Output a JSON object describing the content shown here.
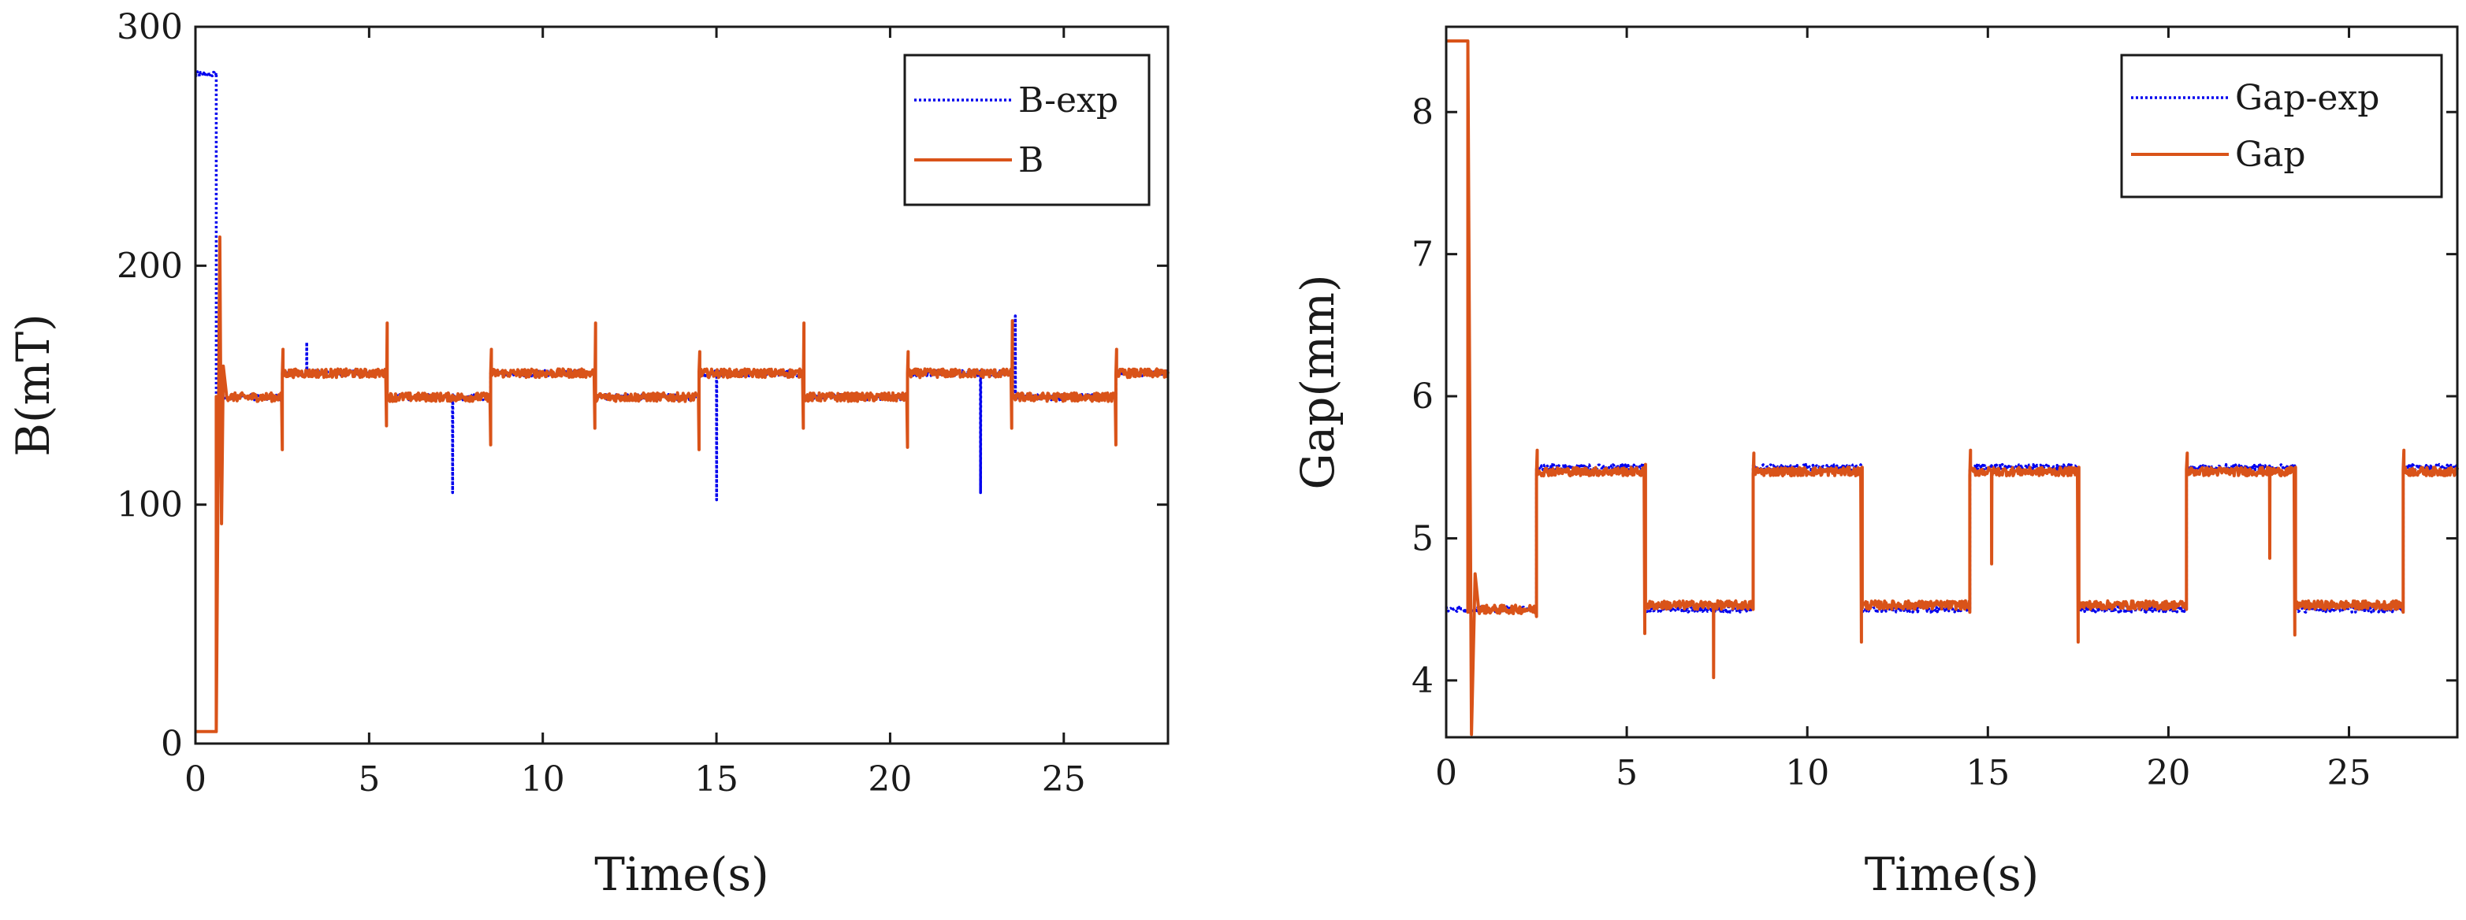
{
  "chart_data": [
    {
      "type": "line",
      "title": "",
      "xlabel": "Time(s)",
      "ylabel": "B(mT)",
      "xlim": [
        0,
        28
      ],
      "ylim": [
        0,
        300
      ],
      "xticks": [
        0,
        5,
        10,
        15,
        20,
        25
      ],
      "xtick_labels": [
        "0",
        "5",
        "10",
        "15",
        "20",
        "25"
      ],
      "yticks": [
        0,
        100,
        200,
        300
      ],
      "ytick_labels": [
        "0",
        "100",
        "200",
        "300"
      ],
      "legend_position": "top-right",
      "series": [
        {
          "name": "B-exp",
          "style": "dotted",
          "color": "#0000ee",
          "levels": [
            {
              "t0": 0.0,
              "t1": 0.6,
              "value": 280
            },
            {
              "t0": 0.6,
              "t1": 2.5,
              "value": 145
            },
            {
              "t0": 2.5,
              "t1": 5.5,
              "value": 155
            },
            {
              "t0": 5.5,
              "t1": 8.5,
              "value": 145
            },
            {
              "t0": 8.5,
              "t1": 11.5,
              "value": 155
            },
            {
              "t0": 11.5,
              "t1": 14.5,
              "value": 145
            },
            {
              "t0": 14.5,
              "t1": 17.5,
              "value": 155
            },
            {
              "t0": 17.5,
              "t1": 20.5,
              "value": 145
            },
            {
              "t0": 20.5,
              "t1": 23.5,
              "value": 155
            },
            {
              "t0": 23.5,
              "t1": 26.5,
              "value": 145
            },
            {
              "t0": 26.5,
              "t1": 28.0,
              "value": 155
            }
          ],
          "spikes": [
            {
              "t": 7.4,
              "value": 105
            },
            {
              "t": 15.0,
              "value": 102
            },
            {
              "t": 22.6,
              "value": 105
            },
            {
              "t": 3.2,
              "value": 168
            },
            {
              "t": 23.6,
              "value": 179
            }
          ]
        },
        {
          "name": "B",
          "style": "solid",
          "color": "#d95319",
          "levels": [
            {
              "t0": 0.0,
              "t1": 0.6,
              "value": 5
            },
            {
              "t0": 0.6,
              "t1": 2.5,
              "value": 145
            },
            {
              "t0": 2.5,
              "t1": 5.5,
              "value": 155
            },
            {
              "t0": 5.5,
              "t1": 8.5,
              "value": 145
            },
            {
              "t0": 8.5,
              "t1": 11.5,
              "value": 155
            },
            {
              "t0": 11.5,
              "t1": 14.5,
              "value": 145
            },
            {
              "t0": 14.5,
              "t1": 17.5,
              "value": 155
            },
            {
              "t0": 17.5,
              "t1": 20.5,
              "value": 145
            },
            {
              "t0": 20.5,
              "t1": 23.5,
              "value": 155
            },
            {
              "t0": 23.5,
              "t1": 26.5,
              "value": 145
            },
            {
              "t0": 26.5,
              "t1": 28.0,
              "value": 155
            }
          ],
          "startup": [
            {
              "t": 0.6,
              "value": 5
            },
            {
              "t": 0.7,
              "value": 212
            },
            {
              "t": 0.75,
              "value": 92
            },
            {
              "t": 0.8,
              "value": 158
            },
            {
              "t": 0.9,
              "value": 145
            }
          ],
          "transitions": [
            {
              "t": 2.5,
              "overshoot": 165,
              "undershoot": 123
            },
            {
              "t": 5.5,
              "overshoot": 176,
              "undershoot": 133
            },
            {
              "t": 8.5,
              "overshoot": 165,
              "undershoot": 125
            },
            {
              "t": 11.5,
              "overshoot": 176,
              "undershoot": 132
            },
            {
              "t": 14.5,
              "overshoot": 164,
              "undershoot": 123
            },
            {
              "t": 17.5,
              "overshoot": 176,
              "undershoot": 132
            },
            {
              "t": 20.5,
              "overshoot": 164,
              "undershoot": 124
            },
            {
              "t": 23.5,
              "overshoot": 177,
              "undershoot": 132
            },
            {
              "t": 26.5,
              "overshoot": 165,
              "undershoot": 125
            }
          ]
        }
      ]
    },
    {
      "type": "line",
      "title": "",
      "xlabel": "Time(s)",
      "ylabel": "Gap(mm)",
      "xlim": [
        0,
        28
      ],
      "ylim": [
        3.6,
        8.6
      ],
      "xticks": [
        0,
        5,
        10,
        15,
        20,
        25
      ],
      "xtick_labels": [
        "0",
        "5",
        "10",
        "15",
        "20",
        "25"
      ],
      "yticks": [
        4,
        5,
        6,
        7,
        8
      ],
      "ytick_labels": [
        "4",
        "5",
        "6",
        "7",
        "8"
      ],
      "legend_position": "top-right",
      "series": [
        {
          "name": "Gap-exp",
          "style": "dotted",
          "color": "#0000ee",
          "levels": [
            {
              "t0": 0.0,
              "t1": 0.6,
              "value": 4.5
            },
            {
              "t0": 0.6,
              "t1": 2.5,
              "value": 4.5
            },
            {
              "t0": 2.5,
              "t1": 5.5,
              "value": 5.5
            },
            {
              "t0": 5.5,
              "t1": 8.5,
              "value": 4.5
            },
            {
              "t0": 8.5,
              "t1": 11.5,
              "value": 5.5
            },
            {
              "t0": 11.5,
              "t1": 14.5,
              "value": 4.5
            },
            {
              "t0": 14.5,
              "t1": 17.5,
              "value": 5.5
            },
            {
              "t0": 17.5,
              "t1": 20.5,
              "value": 4.5
            },
            {
              "t0": 20.5,
              "t1": 23.5,
              "value": 5.5
            },
            {
              "t0": 23.5,
              "t1": 26.5,
              "value": 4.5
            },
            {
              "t0": 26.5,
              "t1": 28.0,
              "value": 5.5
            }
          ],
          "spikes": []
        },
        {
          "name": "Gap",
          "style": "solid",
          "color": "#d95319",
          "levels": [
            {
              "t0": 0.0,
              "t1": 0.6,
              "value": 8.5
            },
            {
              "t0": 0.6,
              "t1": 2.5,
              "value": 4.5
            },
            {
              "t0": 2.5,
              "t1": 5.5,
              "value": 5.47
            },
            {
              "t0": 5.5,
              "t1": 8.5,
              "value": 4.53
            },
            {
              "t0": 8.5,
              "t1": 11.5,
              "value": 5.47
            },
            {
              "t0": 11.5,
              "t1": 14.5,
              "value": 4.53
            },
            {
              "t0": 14.5,
              "t1": 17.5,
              "value": 5.47
            },
            {
              "t0": 17.5,
              "t1": 20.5,
              "value": 4.53
            },
            {
              "t0": 20.5,
              "t1": 23.5,
              "value": 5.47
            },
            {
              "t0": 23.5,
              "t1": 26.5,
              "value": 4.53
            },
            {
              "t0": 26.5,
              "t1": 28.0,
              "value": 5.47
            }
          ],
          "startup": [
            {
              "t": 0.6,
              "value": 8.5
            },
            {
              "t": 0.7,
              "value": 3.62
            },
            {
              "t": 0.8,
              "value": 4.75
            },
            {
              "t": 0.9,
              "value": 4.5
            }
          ],
          "spikes": [
            {
              "t": 7.4,
              "value": 4.02
            },
            {
              "t": 15.1,
              "value": 4.82
            },
            {
              "t": 22.8,
              "value": 4.86
            }
          ],
          "transitions": [
            {
              "t": 2.5,
              "overshoot": 5.62,
              "undershoot": 4.45
            },
            {
              "t": 5.5,
              "overshoot": 5.52,
              "undershoot": 4.33
            },
            {
              "t": 8.5,
              "overshoot": 5.6,
              "undershoot": 4.5
            },
            {
              "t": 11.5,
              "overshoot": 5.5,
              "undershoot": 4.27
            },
            {
              "t": 14.5,
              "overshoot": 5.62,
              "undershoot": 4.48
            },
            {
              "t": 17.5,
              "overshoot": 5.5,
              "undershoot": 4.27
            },
            {
              "t": 20.5,
              "overshoot": 5.6,
              "undershoot": 4.5
            },
            {
              "t": 23.5,
              "overshoot": 5.5,
              "undershoot": 4.32
            },
            {
              "t": 26.5,
              "overshoot": 5.62,
              "undershoot": 4.48
            }
          ]
        }
      ]
    }
  ]
}
